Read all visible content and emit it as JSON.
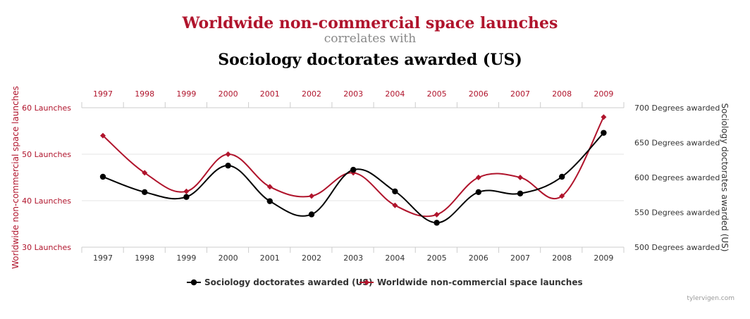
{
  "chart_data": {
    "type": "line",
    "title": "Worldwide non-commercial space launches",
    "subtitle": "correlates with",
    "title2": "Sociology doctorates awarded (US)",
    "x": [
      "1997",
      "1998",
      "1999",
      "2000",
      "2001",
      "2002",
      "2003",
      "2004",
      "2005",
      "2006",
      "2007",
      "2008",
      "2009"
    ],
    "series": [
      {
        "name": "Sociology doctorates awarded (US)",
        "axis": "right",
        "color": "#000000",
        "marker": "circle",
        "values": [
          601,
          579,
          572,
          617,
          566,
          547,
          611,
          580,
          535,
          579,
          577,
          601,
          664
        ]
      },
      {
        "name": "Worldwide non-commercial space launches",
        "axis": "left",
        "color": "#b0142c",
        "marker": "diamond",
        "values": [
          54,
          46,
          42,
          50,
          43,
          41,
          46,
          39,
          37,
          45,
          45,
          41,
          58
        ]
      }
    ],
    "y_left": {
      "label": "Worldwide non-commercial space launches",
      "range": [
        30,
        60
      ],
      "ticks": [
        "30 Launches",
        "40 Launches",
        "50 Launches",
        "60 Launches"
      ],
      "color": "#b0142c"
    },
    "y_right": {
      "label": "Sociology doctorates awarded (US)",
      "range": [
        500,
        700
      ],
      "ticks": [
        "500 Degrees awarded",
        "550 Degrees awarded",
        "600 Degrees awarded",
        "650 Degrees awarded",
        "700 Degrees awarded"
      ],
      "color": "#333333"
    },
    "legend_position": "bottom",
    "grid": true,
    "source": "tylervigen.com"
  }
}
